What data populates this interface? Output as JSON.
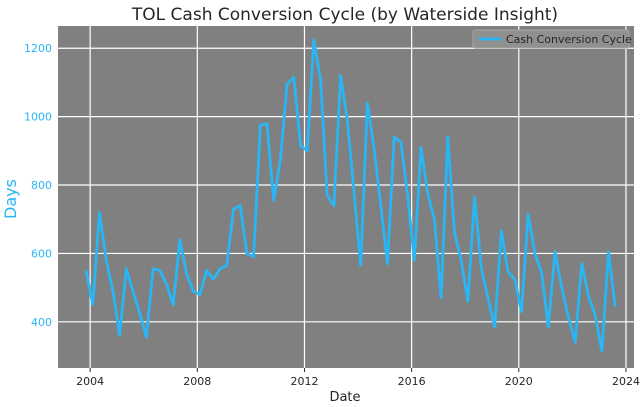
{
  "chart_data": {
    "type": "line",
    "title": "TOL Cash Conversion Cycle (by Waterside Insight)",
    "xlabel": "Date",
    "ylabel": "Days",
    "xlim": [
      2002.8,
      2024.3
    ],
    "ylim": [
      265,
      1265
    ],
    "xticks": [
      "2004",
      "2008",
      "2012",
      "2016",
      "2020",
      "2024"
    ],
    "yticks": [
      "400",
      "600",
      "800",
      "1000",
      "1200"
    ],
    "grid": true,
    "legend_position": "top-right",
    "colors": {
      "line": "#29b6f6",
      "plot_background": "#808080",
      "grid": "#ffffff"
    },
    "series": [
      {
        "name": "Cash Conversion Cycle",
        "x": [
          2003.85,
          2004.1,
          2004.35,
          2004.6,
          2004.85,
          2005.1,
          2005.35,
          2005.6,
          2005.85,
          2006.1,
          2006.35,
          2006.6,
          2006.85,
          2007.1,
          2007.35,
          2007.6,
          2007.85,
          2008.1,
          2008.35,
          2008.6,
          2008.85,
          2009.1,
          2009.35,
          2009.6,
          2009.85,
          2010.1,
          2010.35,
          2010.6,
          2010.85,
          2011.1,
          2011.35,
          2011.6,
          2011.85,
          2012.1,
          2012.35,
          2012.6,
          2012.85,
          2013.1,
          2013.35,
          2013.6,
          2013.85,
          2014.1,
          2014.35,
          2014.6,
          2014.85,
          2015.1,
          2015.35,
          2015.6,
          2015.85,
          2016.1,
          2016.35,
          2016.6,
          2016.85,
          2017.1,
          2017.35,
          2017.6,
          2017.85,
          2018.1,
          2018.35,
          2018.6,
          2018.85,
          2019.1,
          2019.35,
          2019.6,
          2019.85,
          2020.1,
          2020.35,
          2020.6,
          2020.85,
          2021.1,
          2021.35,
          2021.6,
          2021.85,
          2022.1,
          2022.35,
          2022.6,
          2022.85,
          2023.1,
          2023.35,
          2023.6
        ],
        "y": [
          550,
          450,
          720,
          580,
          490,
          360,
          555,
          490,
          425,
          355,
          555,
          550,
          510,
          450,
          640,
          540,
          490,
          480,
          550,
          525,
          555,
          565,
          730,
          740,
          600,
          590,
          975,
          980,
          755,
          875,
          1095,
          1115,
          915,
          900,
          1225,
          1110,
          770,
          740,
          1120,
          990,
          780,
          565,
          1040,
          905,
          740,
          570,
          940,
          925,
          770,
          580,
          910,
          775,
          700,
          470,
          940,
          660,
          580,
          460,
          765,
          555,
          470,
          385,
          665,
          545,
          525,
          430,
          715,
          600,
          545,
          385,
          605,
          500,
          415,
          340,
          570,
          475,
          420,
          315,
          605,
          445
        ]
      }
    ]
  }
}
